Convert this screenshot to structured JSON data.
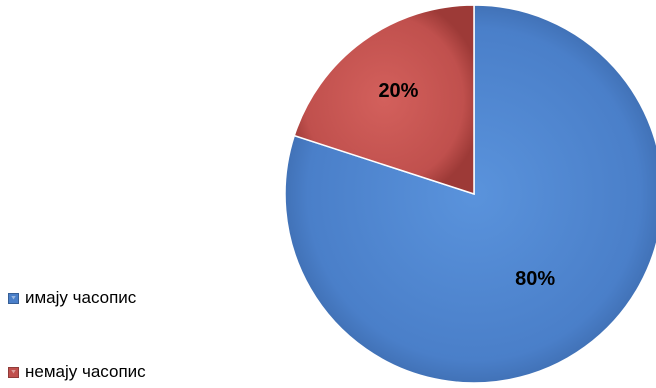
{
  "chart_data": {
    "type": "pie",
    "title": "",
    "categories": [
      "имају часопис",
      "немају часопис"
    ],
    "values": [
      80,
      20
    ],
    "labels": [
      "80%",
      "20%"
    ],
    "colors": [
      "#4a7fc9",
      "#c0504d"
    ],
    "legend_position": "left-bottom",
    "start_angle_deg": 0,
    "direction": "clockwise"
  }
}
